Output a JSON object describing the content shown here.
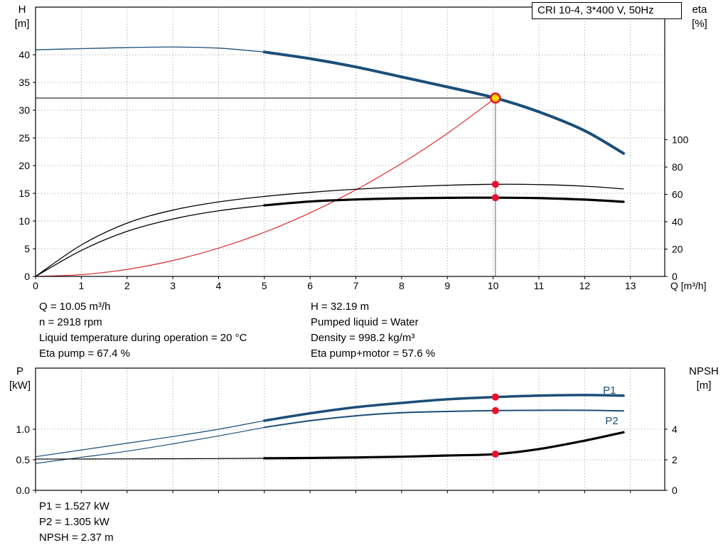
{
  "title_box": "CRI 10-4, 3*400 V, 50Hz",
  "operating_point": {
    "left": [
      "Q = 10.05 m³/h",
      "n = 2918 rpm",
      "Liquid temperature during operation = 20 °C",
      "Eta pump = 67.4 %"
    ],
    "right": [
      "H = 32.19 m",
      "Pumped liquid = Water",
      "Density = 998.2 kg/m³",
      "Eta pump+motor = 57.6 %"
    ]
  },
  "power_readout": [
    "P1 = 1.527 kW",
    "P2 = 1.305 kW",
    "NPSH = 2.37 m"
  ],
  "colors": {
    "curve_blue": "#1b4e79",
    "curve_red": "#d92b2b",
    "marker_red": "#e8112d",
    "duty_point_fill": "#ffd400",
    "reference_gray": "#666666",
    "grid": "#9a9a9a"
  },
  "chart_data": [
    {
      "id": "hq-chart",
      "type": "line",
      "title": "CRI 10-4, 3*400 V, 50Hz",
      "xlabel": "Q [m³/h]",
      "ylabel_left": [
        "H",
        "[m]"
      ],
      "ylabel_right": [
        "eta",
        "[%]"
      ],
      "xlim": [
        0,
        13.75
      ],
      "ylim_left": [
        0,
        48.6
      ],
      "ylim_right": [
        0,
        197
      ],
      "xticks": [
        [
          0,
          "0"
        ],
        [
          1,
          "1"
        ],
        [
          2,
          "2"
        ],
        [
          3,
          "3"
        ],
        [
          4,
          "4"
        ],
        [
          5,
          "5"
        ],
        [
          6,
          "6"
        ],
        [
          7,
          "7"
        ],
        [
          8,
          "8"
        ],
        [
          9,
          "9"
        ],
        [
          10,
          "10"
        ],
        [
          11,
          "11"
        ],
        [
          12,
          "12"
        ],
        [
          13,
          "13"
        ]
      ],
      "yticks_left": [
        [
          0,
          "0"
        ],
        [
          5,
          "5"
        ],
        [
          10,
          "10"
        ],
        [
          15,
          "15"
        ],
        [
          20,
          "20"
        ],
        [
          25,
          "25"
        ],
        [
          30,
          "30"
        ],
        [
          35,
          "35"
        ],
        [
          40,
          "40"
        ]
      ],
      "yticks_right": [
        [
          0,
          "0"
        ],
        [
          20,
          "20"
        ],
        [
          40,
          "40"
        ],
        [
          60,
          "60"
        ],
        [
          80,
          "80"
        ],
        [
          100,
          "100"
        ]
      ],
      "series": [
        {
          "name": "pump-curve-thin",
          "axis": "left",
          "color": "#1b4e79",
          "width": 1.3,
          "x": [
            0,
            1,
            2,
            3,
            4,
            5
          ],
          "y": [
            40.9,
            41.1,
            41.3,
            41.4,
            41.2,
            40.5
          ]
        },
        {
          "name": "pump-curve",
          "axis": "left",
          "color": "#1b4e79",
          "width": 4,
          "x": [
            5,
            6,
            7,
            8,
            9,
            10.05,
            11,
            12,
            12.85
          ],
          "y": [
            40.5,
            39.3,
            37.8,
            36.0,
            34.2,
            32.19,
            29.7,
            26.3,
            22.2
          ]
        },
        {
          "name": "system-curve",
          "axis": "left",
          "color": "#d92b2b",
          "width": 1.2,
          "x": [
            0,
            1,
            2,
            3,
            4,
            5,
            6,
            7,
            8,
            9,
            10.05
          ],
          "y": [
            0,
            0.32,
            1.27,
            2.87,
            5.1,
            7.97,
            11.47,
            15.62,
            20.4,
            25.81,
            32.19
          ]
        },
        {
          "name": "eta-pump-curve",
          "axis": "right",
          "color": "#000000",
          "width": 1.3,
          "x": [
            0,
            1,
            2,
            3,
            4,
            5,
            6,
            7,
            8,
            9,
            10.05,
            11,
            12,
            12.85
          ],
          "y": [
            0,
            23,
            39,
            48.5,
            54.5,
            58.5,
            61.5,
            63.8,
            65.5,
            66.7,
            67.4,
            67.2,
            66,
            64
          ]
        },
        {
          "name": "eta-pump-motor-curve-thin",
          "axis": "right",
          "color": "#000000",
          "width": 1.3,
          "x": [
            0,
            1,
            2,
            3,
            4,
            5
          ],
          "y": [
            0,
            19,
            33,
            42,
            48,
            52
          ]
        },
        {
          "name": "eta-pump-motor-curve",
          "axis": "right",
          "color": "#000000",
          "width": 3.2,
          "x": [
            5,
            6,
            7,
            8,
            9,
            10.05,
            11,
            12,
            12.85
          ],
          "y": [
            52,
            54.8,
            56.3,
            57.1,
            57.5,
            57.6,
            57.3,
            56.2,
            54.6
          ]
        }
      ],
      "ref_lines": [
        {
          "name": "duty-head-line",
          "orient": "h",
          "axis": "left",
          "y": 32.19,
          "x1": 0,
          "x2": 10.05,
          "color": "#000000",
          "width": 1
        },
        {
          "name": "duty-flow-line",
          "orient": "v",
          "axis": "left",
          "x": 10.05,
          "y1": 0,
          "y2": 32.19,
          "color": "#666666",
          "width": 1
        }
      ],
      "markers": [
        {
          "name": "duty-point",
          "axis": "left",
          "x": 10.05,
          "y": 32.19,
          "r": 6.5,
          "fill": "#ffd400",
          "stroke": "#e8112d",
          "stroke_width": 2.5,
          "interactable": true
        },
        {
          "name": "eta-pump-point",
          "axis": "right",
          "x": 10.05,
          "y": 67.4,
          "r": 5,
          "fill": "#e8112d"
        },
        {
          "name": "eta-pump-motor-point",
          "axis": "right",
          "x": 10.05,
          "y": 57.6,
          "r": 5,
          "fill": "#e8112d"
        }
      ],
      "annotations": []
    },
    {
      "id": "power-npsh-chart",
      "type": "line",
      "title": "",
      "xlabel": "",
      "ylabel_left": [
        "P",
        "[kW]"
      ],
      "ylabel_right": [
        "NPSH",
        "[m]"
      ],
      "xlim": [
        0,
        13.75
      ],
      "ylim_left": [
        0,
        2.0
      ],
      "ylim_right": [
        0,
        8.0
      ],
      "xticks": [
        [
          0,
          ""
        ],
        [
          1,
          ""
        ],
        [
          2,
          ""
        ],
        [
          3,
          ""
        ],
        [
          4,
          ""
        ],
        [
          5,
          ""
        ],
        [
          6,
          ""
        ],
        [
          7,
          ""
        ],
        [
          8,
          ""
        ],
        [
          9,
          ""
        ],
        [
          10,
          ""
        ],
        [
          11,
          ""
        ],
        [
          12,
          ""
        ],
        [
          13,
          ""
        ]
      ],
      "yticks_left": [
        [
          0,
          "0.0"
        ],
        [
          0.5,
          "0.5"
        ],
        [
          1,
          "1.0"
        ]
      ],
      "yticks_right": [
        [
          0,
          "0"
        ],
        [
          2,
          "2"
        ],
        [
          4,
          "4"
        ]
      ],
      "series": [
        {
          "name": "p1-curve-thin",
          "axis": "left",
          "color": "#1b4e79",
          "width": 1.2,
          "x": [
            0,
            1,
            2,
            3,
            4,
            5
          ],
          "y": [
            0.55,
            0.66,
            0.77,
            0.88,
            1.0,
            1.14
          ]
        },
        {
          "name": "p1-curve",
          "axis": "left",
          "color": "#1b4e79",
          "width": 3.5,
          "x": [
            5,
            6,
            7,
            8,
            9,
            10.05,
            11,
            12,
            12.85
          ],
          "y": [
            1.14,
            1.26,
            1.36,
            1.43,
            1.49,
            1.527,
            1.55,
            1.56,
            1.55
          ]
        },
        {
          "name": "p2-curve-thin",
          "axis": "left",
          "color": "#1b4e79",
          "width": 1.2,
          "x": [
            0,
            1,
            2,
            3,
            4,
            5
          ],
          "y": [
            0.44,
            0.54,
            0.64,
            0.76,
            0.89,
            1.03
          ]
        },
        {
          "name": "p2-curve",
          "axis": "left",
          "color": "#1b4e79",
          "width": 2,
          "x": [
            5,
            6,
            7,
            8,
            9,
            10.05,
            11,
            12,
            12.85
          ],
          "y": [
            1.03,
            1.14,
            1.22,
            1.27,
            1.29,
            1.305,
            1.31,
            1.31,
            1.3
          ]
        },
        {
          "name": "npsh-curve-thin",
          "axis": "right",
          "color": "#000000",
          "width": 1.2,
          "x": [
            0,
            1,
            2,
            3,
            4,
            5
          ],
          "y": [
            2.05,
            2.05,
            2.06,
            2.07,
            2.08,
            2.1
          ]
        },
        {
          "name": "npsh-curve",
          "axis": "right",
          "color": "#000000",
          "width": 3.2,
          "x": [
            5,
            6,
            7,
            8,
            9,
            10.05,
            11,
            12,
            12.85
          ],
          "y": [
            2.1,
            2.12,
            2.15,
            2.2,
            2.28,
            2.37,
            2.7,
            3.25,
            3.8
          ]
        }
      ],
      "ref_lines": [],
      "markers": [
        {
          "name": "p1-point",
          "axis": "left",
          "x": 10.05,
          "y": 1.527,
          "r": 5,
          "fill": "#e8112d"
        },
        {
          "name": "p2-point",
          "axis": "left",
          "x": 10.05,
          "y": 1.305,
          "r": 5,
          "fill": "#e8112d"
        },
        {
          "name": "npsh-point",
          "axis": "right",
          "x": 10.05,
          "y": 2.37,
          "r": 5,
          "fill": "#e8112d"
        }
      ],
      "annotations": [
        {
          "name": "p1-curve-label",
          "text": "P1",
          "axis": "left",
          "x": 12.4,
          "y": 1.58,
          "color": "#1b4e79"
        },
        {
          "name": "p2-curve-label",
          "text": "P2",
          "axis": "left",
          "x": 12.45,
          "y": 1.08,
          "color": "#1b4e79"
        }
      ]
    }
  ]
}
